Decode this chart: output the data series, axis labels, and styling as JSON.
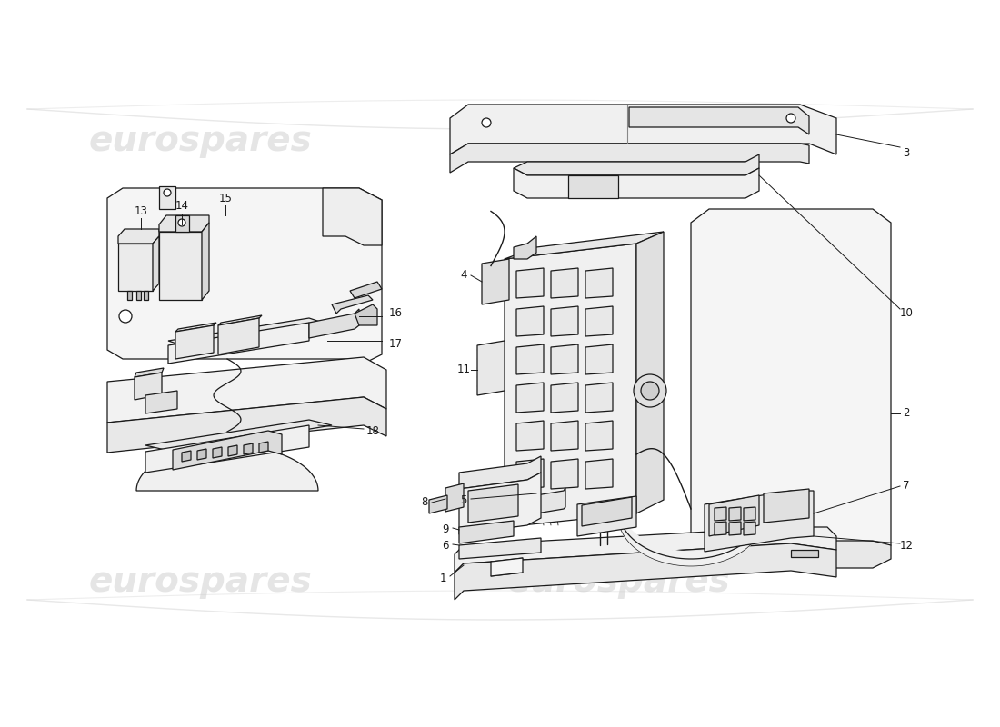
{
  "background_color": "#ffffff",
  "line_color": "#1a1a1a",
  "watermark_color": "#cccccc",
  "watermark_text": "eurospares",
  "label_fontsize": 8.5,
  "lw": 0.9
}
